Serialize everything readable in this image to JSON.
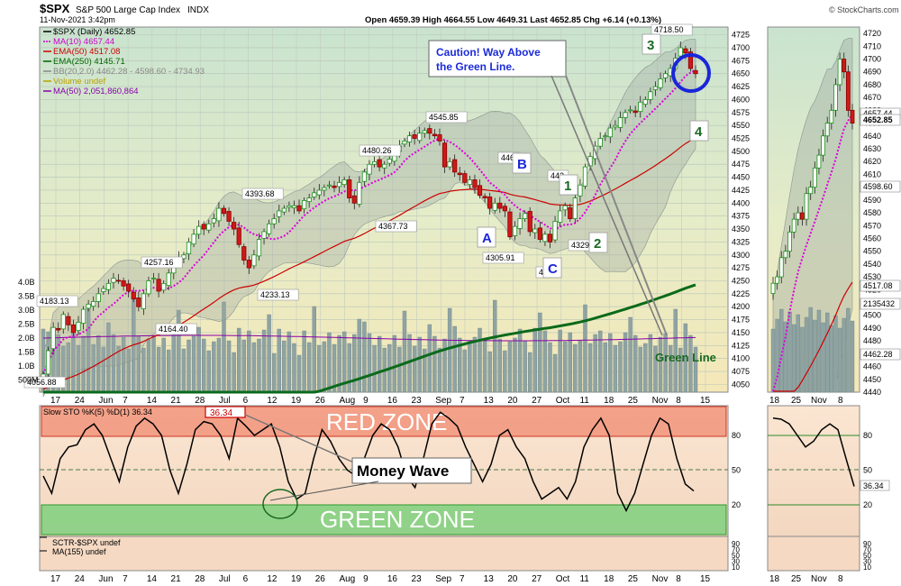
{
  "header": {
    "symbol": "$SPX",
    "name": "S&P 500 Large Cap Index",
    "exchange": "INDX",
    "datetime": "11-Nov-2021 3:42pm",
    "ohlc": "Open 4659.39  High 4664.55  Low 4649.31  Last 4652.85  Chg +6.14 (+0.13%)",
    "watermark": "© StockCharts.com"
  },
  "legend": [
    {
      "text": "$SPX (Daily) 4652.85",
      "color": "#000000"
    },
    {
      "text": "MA(10) 4657.44",
      "color": "#cc00cc"
    },
    {
      "text": "EMA(50) 4517.08",
      "color": "#cc0000"
    },
    {
      "text": "EMA(250) 4145.71",
      "color": "#006600"
    },
    {
      "text": "BB(20,2.0) 4462.28 - 4598.60 - 4734.93",
      "color": "#888888"
    },
    {
      "text": "Volume undef",
      "color": "#b8a000"
    },
    {
      "text": "MA(50) 2,051,860,864",
      "color": "#8800aa"
    }
  ],
  "annotations": {
    "caution_line1": "Caution! Way Above",
    "caution_line2": "the Green Line.",
    "green_line": "Green Line",
    "money_wave": "Money Wave",
    "red_zone": "RED ZONE",
    "green_zone": "GREEN ZONE",
    "wave_labels": [
      "A",
      "B",
      "C",
      "1",
      "2",
      "3",
      "4"
    ]
  },
  "price_labels": [
    "4183.13",
    "4056.88",
    "4257.16",
    "4164.40",
    "4393.68",
    "4233.13",
    "4367.73",
    "4480.26",
    "4545.85",
    "4305.91",
    "446",
    "442",
    "42",
    "4329",
    "4718.50"
  ],
  "right_axis_labels": [
    "4725",
    "4700",
    "4675",
    "4650",
    "4625",
    "4600",
    "4575",
    "4550",
    "4525",
    "4500",
    "4475",
    "4450",
    "4425",
    "4400",
    "4375",
    "4350",
    "4325",
    "4300",
    "4275",
    "4250",
    "4225",
    "4200",
    "4175",
    "4150",
    "4125",
    "4100",
    "4075",
    "4050"
  ],
  "volume_axis_labels": [
    "4.0B",
    "3.5B",
    "3.0B",
    "2.5B",
    "2.0B",
    "1.5B",
    "1.0B",
    "500M"
  ],
  "x_axis_labels": [
    "17",
    "24",
    "Jun",
    "7",
    "14",
    "21",
    "28",
    "Jul",
    "6",
    "12",
    "19",
    "26",
    "Aug",
    "9",
    "16",
    "23",
    "Sep",
    "7",
    "13",
    "20",
    "27",
    "Oct",
    "11",
    "18",
    "25",
    "Nov",
    "8",
    "15"
  ],
  "stoch": {
    "legend": "Slow STO %K(5) %D(1) 36.34",
    "value_box": "36.34",
    "axis": [
      "80",
      "50",
      "20"
    ]
  },
  "sctr": {
    "legend1": "SCTR-$SPX undef",
    "legend2": "MA(155) undef",
    "axis": [
      "90",
      "70",
      "50",
      "30",
      "10"
    ]
  },
  "side_panel": {
    "axis": [
      "4720",
      "4710",
      "4700",
      "4690",
      "4680",
      "4670",
      "4660",
      "4650",
      "4640",
      "4630",
      "4620",
      "4610",
      "4600",
      "4590",
      "4580",
      "4570",
      "4560",
      "4550",
      "4540",
      "4530",
      "4520",
      "4510",
      "4500",
      "4490",
      "4480",
      "4470",
      "4460",
      "4450",
      "4440"
    ],
    "tags": [
      "4657.44",
      "4652.85",
      "4598.60",
      "4517.08",
      "2135432",
      "4462.28"
    ],
    "x_axis": [
      "18",
      "25",
      "Nov",
      "8"
    ],
    "stoch_axis": [
      "80",
      "50",
      "20"
    ],
    "stoch_value": "36.34",
    "sctr_axis": [
      "90",
      "70",
      "50",
      "30",
      "10"
    ]
  },
  "chart_data": {
    "type": "candlestick",
    "title": "$SPX S&P 500 Large Cap Index",
    "ylabel": "",
    "ylim": [
      4035,
      4740
    ],
    "close": [
      4070,
      4115,
      4160,
      4155,
      4185,
      4165,
      4150,
      4170,
      4195,
      4205,
      4210,
      4225,
      4235,
      4245,
      4255,
      4250,
      4240,
      4230,
      4215,
      4200,
      4225,
      4250,
      4255,
      4230,
      4245,
      4265,
      4285,
      4295,
      4300,
      4325,
      4340,
      4355,
      4350,
      4360,
      4370,
      4390,
      4380,
      4365,
      4350,
      4320,
      4290,
      4275,
      4300,
      4330,
      4345,
      4360,
      4370,
      4385,
      4390,
      4395,
      4395,
      4385,
      4405,
      4410,
      4420,
      4425,
      4430,
      4435,
      4430,
      4440,
      4445,
      4410,
      4400,
      4440,
      4460,
      4475,
      4480,
      4470,
      4475,
      4485,
      4500,
      4510,
      4520,
      4530,
      4525,
      4535,
      4540,
      4535,
      4530,
      4520,
      4470,
      4480,
      4460,
      4455,
      4440,
      4445,
      4430,
      4415,
      4410,
      4390,
      4400,
      4390,
      4385,
      4335,
      4355,
      4370,
      4380,
      4345,
      4350,
      4330,
      4340,
      4325,
      4365,
      4385,
      4395,
      4370,
      4410,
      4435,
      4470,
      4490,
      4510,
      4525,
      4530,
      4545,
      4550,
      4565,
      4575,
      4580,
      4575,
      4595,
      4600,
      4615,
      4625,
      4640,
      4650,
      4660,
      4680,
      4700,
      4690,
      4660,
      4650
    ]
  }
}
